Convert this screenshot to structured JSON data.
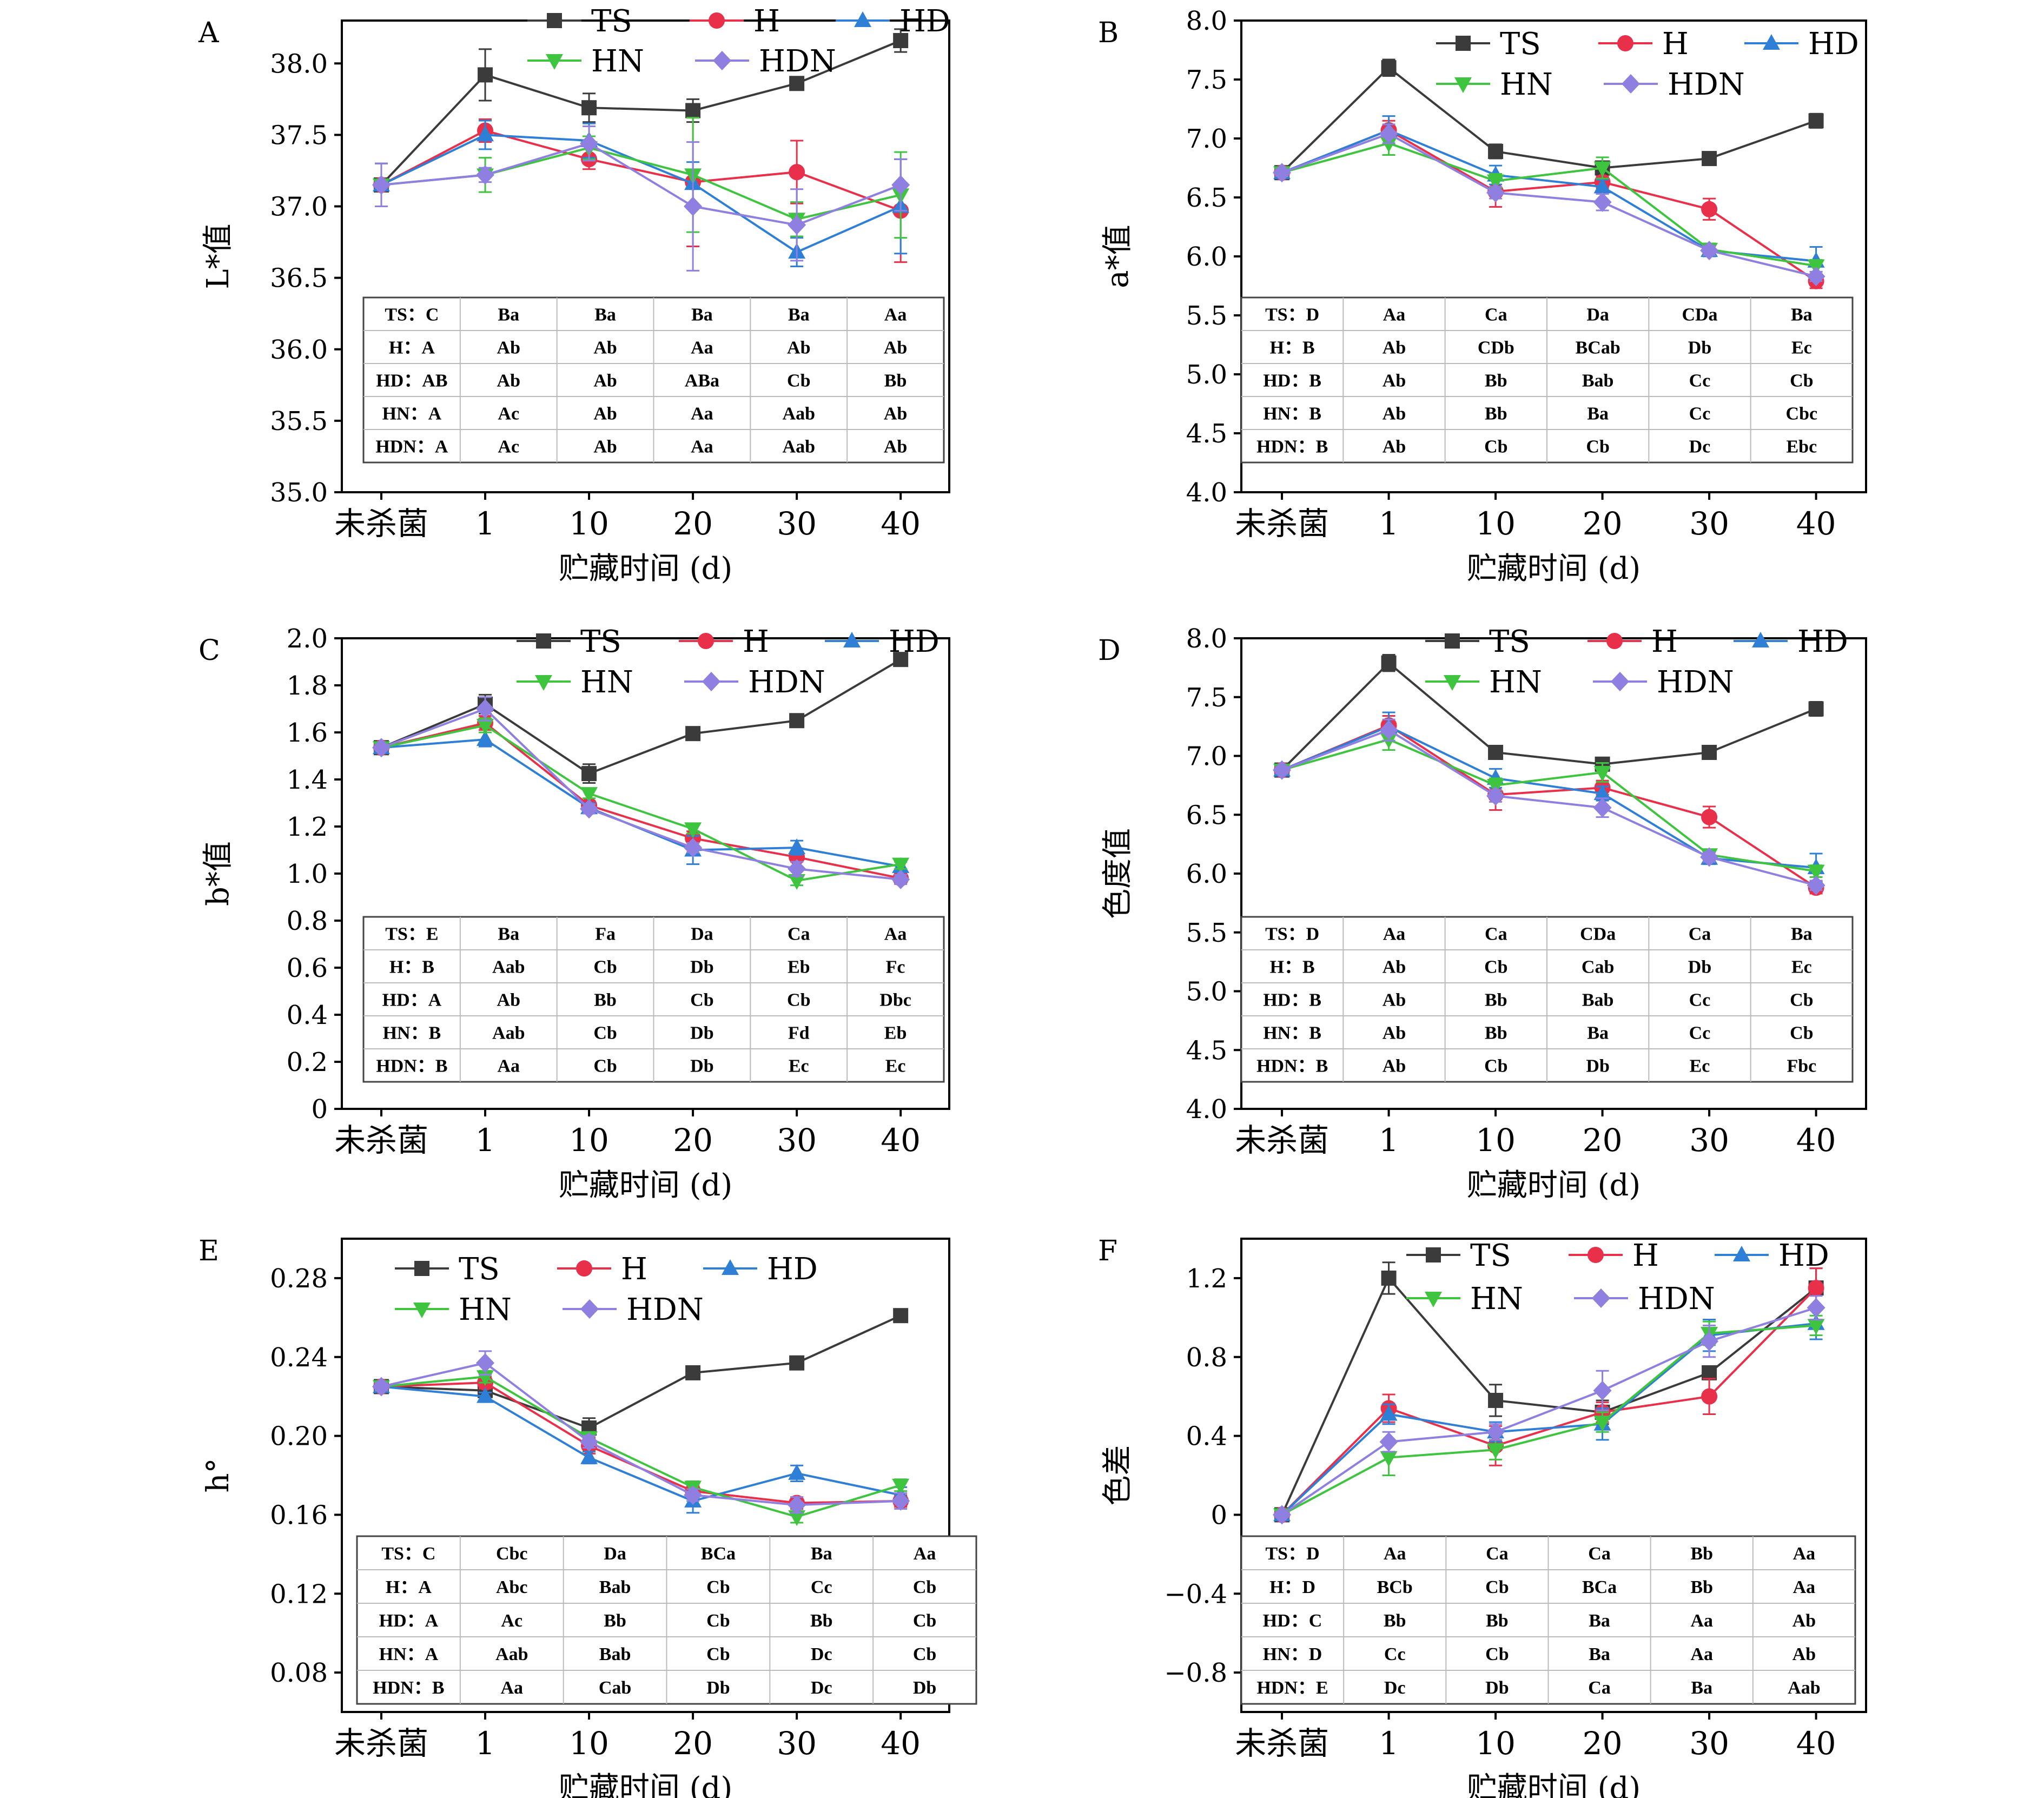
{
  "shared": {
    "categories": [
      "未杀菌",
      "1",
      "10",
      "20",
      "30",
      "40"
    ],
    "xlabel": "贮藏时间 (d)",
    "series_names": [
      "TS",
      "H",
      "HD",
      "HN",
      "HDN"
    ],
    "series_colors": [
      "#3b3b3b",
      "#e8304a",
      "#2f7fd6",
      "#3ec43e",
      "#8f7fe0"
    ],
    "series_markers": [
      "square",
      "circle",
      "triangle-up",
      "triangle-down",
      "diamond"
    ]
  },
  "chart_data": [
    {
      "type": "line",
      "panel": "A",
      "ylabel": "L*值",
      "ylim": [
        35.0,
        38.3
      ],
      "yticks": [
        "35.0",
        "35.5",
        "36.0",
        "36.5",
        "37.0",
        "37.5",
        "38.0"
      ],
      "categories": [
        "未杀菌",
        "1",
        "10",
        "20",
        "30",
        "40"
      ],
      "series": [
        {
          "name": "TS",
          "values": [
            37.15,
            37.92,
            37.69,
            37.67,
            37.86,
            38.16
          ],
          "errors": [
            0.15,
            0.18,
            0.1,
            0.08,
            0.02,
            0.08
          ]
        },
        {
          "name": "H",
          "values": [
            37.15,
            37.53,
            37.33,
            37.17,
            37.24,
            36.97
          ],
          "errors": [
            0.15,
            0.08,
            0.07,
            0.45,
            0.22,
            0.36
          ]
        },
        {
          "name": "HD",
          "values": [
            37.15,
            37.5,
            37.46,
            37.16,
            36.68,
            37.0
          ],
          "errors": [
            0.15,
            0.1,
            0.12,
            0.15,
            0.1,
            0.33
          ]
        },
        {
          "name": "HN",
          "values": [
            37.15,
            37.22,
            37.41,
            37.22,
            36.91,
            37.08
          ],
          "errors": [
            0.15,
            0.12,
            0.08,
            0.4,
            0.12,
            0.3
          ]
        },
        {
          "name": "HDN",
          "values": [
            37.15,
            37.22,
            37.44,
            37.0,
            36.87,
            37.15
          ],
          "errors": [
            0.15,
            0.05,
            0.12,
            0.45,
            0.25,
            0.18
          ]
        }
      ],
      "table": [
        [
          "TS：C",
          "Ba",
          "Ba",
          "Ba",
          "Ba",
          "Aa"
        ],
        [
          "H：A",
          "Ab",
          "Ab",
          "Aa",
          "Ab",
          "Ab"
        ],
        [
          "HD：AB",
          "Ab",
          "Ab",
          "ABa",
          "Cb",
          "Bb"
        ],
        [
          "HN：A",
          "Ac",
          "Ab",
          "Aa",
          "Aab",
          "Ab"
        ],
        [
          "HDN：A",
          "Ac",
          "Ab",
          "Aa",
          "Aab",
          "Ab"
        ]
      ]
    },
    {
      "type": "line",
      "panel": "B",
      "ylabel": "a*值",
      "ylim": [
        4.0,
        8.0
      ],
      "yticks": [
        "4.0",
        "4.5",
        "5.0",
        "5.5",
        "6.0",
        "6.5",
        "7.0",
        "7.5",
        "8.0"
      ],
      "categories": [
        "未杀菌",
        "1",
        "10",
        "20",
        "30",
        "40"
      ],
      "series": [
        {
          "name": "TS",
          "values": [
            6.71,
            7.6,
            6.89,
            6.75,
            6.83,
            7.15
          ],
          "errors": [
            0.03,
            0.07,
            0.06,
            0.02,
            0.02,
            0.06
          ]
        },
        {
          "name": "H",
          "values": [
            6.71,
            7.07,
            6.55,
            6.63,
            6.4,
            5.79
          ],
          "errors": [
            0.03,
            0.08,
            0.13,
            0.05,
            0.09,
            0.06
          ]
        },
        {
          "name": "HD",
          "values": [
            6.71,
            7.07,
            6.69,
            6.59,
            6.05,
            5.96
          ],
          "errors": [
            0.03,
            0.12,
            0.08,
            0.06,
            0.05,
            0.12
          ]
        },
        {
          "name": "HN",
          "values": [
            6.71,
            6.96,
            6.64,
            6.75,
            6.06,
            5.92
          ],
          "errors": [
            0.03,
            0.1,
            0.06,
            0.09,
            0.05,
            0.05
          ]
        },
        {
          "name": "HDN",
          "values": [
            6.71,
            7.04,
            6.54,
            6.46,
            6.05,
            5.83
          ],
          "errors": [
            0.03,
            0.08,
            0.05,
            0.07,
            0.04,
            0.04
          ]
        }
      ],
      "table": [
        [
          "TS：D",
          "Aa",
          "Ca",
          "Da",
          "CDa",
          "Ba"
        ],
        [
          "H：B",
          "Ab",
          "CDb",
          "BCab",
          "Db",
          "Ec"
        ],
        [
          "HD：B",
          "Ab",
          "Bb",
          "Bab",
          "Cc",
          "Cb"
        ],
        [
          "HN：B",
          "Ab",
          "Bb",
          "Ba",
          "Cc",
          "Cbc"
        ],
        [
          "HDN：B",
          "Ab",
          "Cb",
          "Cb",
          "Dc",
          "Ebc"
        ]
      ]
    },
    {
      "type": "line",
      "panel": "C",
      "ylabel": "b*值",
      "ylim": [
        0,
        2.0
      ],
      "yticks": [
        "0",
        "0.2",
        "0.4",
        "0.6",
        "0.8",
        "1.0",
        "1.2",
        "1.4",
        "1.6",
        "1.8",
        "2.0"
      ],
      "categories": [
        "未杀菌",
        "1",
        "10",
        "20",
        "30",
        "40"
      ],
      "series": [
        {
          "name": "TS",
          "values": [
            1.535,
            1.72,
            1.425,
            1.595,
            1.65,
            1.91
          ],
          "errors": [
            0.01,
            0.04,
            0.04,
            0.01,
            0.01,
            0.01
          ]
        },
        {
          "name": "H",
          "values": [
            1.535,
            1.64,
            1.29,
            1.15,
            1.07,
            0.98
          ],
          "errors": [
            0.01,
            0.03,
            0.02,
            0.03,
            0.02,
            0.02
          ]
        },
        {
          "name": "HD",
          "values": [
            1.535,
            1.57,
            1.28,
            1.1,
            1.11,
            1.03
          ],
          "errors": [
            0.01,
            0.03,
            0.02,
            0.06,
            0.03,
            0.02
          ]
        },
        {
          "name": "HN",
          "values": [
            1.535,
            1.63,
            1.34,
            1.19,
            0.97,
            1.04
          ],
          "errors": [
            0.01,
            0.03,
            0.02,
            0.02,
            0.02,
            0.02
          ]
        },
        {
          "name": "HDN",
          "values": [
            1.535,
            1.7,
            1.275,
            1.11,
            1.02,
            0.975
          ],
          "errors": [
            0.01,
            0.05,
            0.02,
            0.02,
            0.03,
            0.02
          ]
        }
      ],
      "table": [
        [
          "TS：E",
          "Ba",
          "Fa",
          "Da",
          "Ca",
          "Aa"
        ],
        [
          "H：B",
          "Aab",
          "Cb",
          "Db",
          "Eb",
          "Fc"
        ],
        [
          "HD：A",
          "Ab",
          "Bb",
          "Cb",
          "Cb",
          "Dbc"
        ],
        [
          "HN：B",
          "Aab",
          "Cb",
          "Db",
          "Fd",
          "Eb"
        ],
        [
          "HDN：B",
          "Aa",
          "Cb",
          "Db",
          "Ec",
          "Ec"
        ]
      ]
    },
    {
      "type": "line",
      "panel": "D",
      "ylabel": "色度值",
      "ylim": [
        4.0,
        8.0
      ],
      "yticks": [
        "4.0",
        "4.5",
        "5.0",
        "5.5",
        "6.0",
        "6.5",
        "7.0",
        "7.5",
        "8.0"
      ],
      "categories": [
        "未杀菌",
        "1",
        "10",
        "20",
        "30",
        "40"
      ],
      "series": [
        {
          "name": "TS",
          "values": [
            6.88,
            7.79,
            7.03,
            6.93,
            7.03,
            7.4
          ],
          "errors": [
            0.03,
            0.07,
            0.05,
            0.03,
            0.02,
            0.06
          ]
        },
        {
          "name": "H",
          "values": [
            6.88,
            7.26,
            6.67,
            6.73,
            6.48,
            5.88
          ],
          "errors": [
            0.03,
            0.08,
            0.13,
            0.06,
            0.09,
            0.05
          ]
        },
        {
          "name": "HD",
          "values": [
            6.88,
            7.25,
            6.81,
            6.68,
            6.13,
            6.05
          ],
          "errors": [
            0.03,
            0.12,
            0.08,
            0.06,
            0.05,
            0.12
          ]
        },
        {
          "name": "HN",
          "values": [
            6.88,
            7.14,
            6.75,
            6.86,
            6.16,
            6.02
          ],
          "errors": [
            0.03,
            0.09,
            0.06,
            0.08,
            0.04,
            0.05
          ]
        },
        {
          "name": "HDN",
          "values": [
            6.88,
            7.22,
            6.66,
            6.56,
            6.14,
            5.9
          ],
          "errors": [
            0.03,
            0.09,
            0.05,
            0.08,
            0.04,
            0.04
          ]
        }
      ],
      "table": [
        [
          "TS：D",
          "Aa",
          "Ca",
          "CDa",
          "Ca",
          "Ba"
        ],
        [
          "H：B",
          "Ab",
          "Cb",
          "Cab",
          "Db",
          "Ec"
        ],
        [
          "HD：B",
          "Ab",
          "Bb",
          "Bab",
          "Cc",
          "Cb"
        ],
        [
          "HN：B",
          "Ab",
          "Bb",
          "Ba",
          "Cc",
          "Cb"
        ],
        [
          "HDN：B",
          "Ab",
          "Cb",
          "Db",
          "Ec",
          "Fbc"
        ]
      ]
    },
    {
      "type": "line",
      "panel": "E",
      "ylabel": "h°",
      "ylim": [
        0.06,
        0.3
      ],
      "yticks": [
        "0.08",
        "0.12",
        "0.16",
        "0.20",
        "0.24",
        "0.28"
      ],
      "categories": [
        "未杀菌",
        "1",
        "10",
        "20",
        "30",
        "40"
      ],
      "series": [
        {
          "name": "TS",
          "values": [
            0.225,
            0.223,
            0.204,
            0.232,
            0.237,
            0.261
          ],
          "errors": [
            0.002,
            0.003,
            0.005,
            0.001,
            0.001,
            0.001
          ]
        },
        {
          "name": "H",
          "values": [
            0.225,
            0.227,
            0.195,
            0.172,
            0.166,
            0.167
          ],
          "errors": [
            0.002,
            0.003,
            0.004,
            0.003,
            0.003,
            0.003
          ]
        },
        {
          "name": "HD",
          "values": [
            0.225,
            0.22,
            0.189,
            0.167,
            0.181,
            0.17
          ],
          "errors": [
            0.002,
            0.002,
            0.003,
            0.006,
            0.004,
            0.004
          ]
        },
        {
          "name": "HN",
          "values": [
            0.225,
            0.23,
            0.199,
            0.174,
            0.159,
            0.175
          ],
          "errors": [
            0.002,
            0.003,
            0.003,
            0.003,
            0.003,
            0.003
          ]
        },
        {
          "name": "HDN",
          "values": [
            0.225,
            0.237,
            0.197,
            0.17,
            0.165,
            0.167
          ],
          "errors": [
            0.002,
            0.006,
            0.003,
            0.003,
            0.004,
            0.004
          ]
        }
      ],
      "table": [
        [
          "TS：C",
          "Cbc",
          "Da",
          "BCa",
          "Ba",
          "Aa"
        ],
        [
          "H：A",
          "Abc",
          "Bab",
          "Cb",
          "Cc",
          "Cb"
        ],
        [
          "HD：A",
          "Ac",
          "Bb",
          "Cb",
          "Bb",
          "Cb"
        ],
        [
          "HN：A",
          "Aab",
          "Bab",
          "Cb",
          "Dc",
          "Cb"
        ],
        [
          "HDN：B",
          "Aa",
          "Cab",
          "Db",
          "Dc",
          "Db"
        ]
      ]
    },
    {
      "type": "line",
      "panel": "F",
      "ylabel": "色差",
      "ylim": [
        -1.0,
        1.4
      ],
      "yticks": [
        "−0.8",
        "−0.4",
        "0",
        "0.4",
        "0.8",
        "1.2"
      ],
      "categories": [
        "未杀菌",
        "1",
        "10",
        "20",
        "30",
        "40"
      ],
      "series": [
        {
          "name": "TS",
          "values": [
            0,
            1.2,
            0.58,
            0.52,
            0.72,
            1.15
          ],
          "errors": [
            0.01,
            0.08,
            0.08,
            0.06,
            0.02,
            0.1
          ]
        },
        {
          "name": "H",
          "values": [
            0,
            0.54,
            0.35,
            0.52,
            0.6,
            1.15
          ],
          "errors": [
            0.01,
            0.07,
            0.1,
            0.05,
            0.09,
            0.1
          ]
        },
        {
          "name": "HD",
          "values": [
            0,
            0.51,
            0.42,
            0.46,
            0.91,
            0.97
          ],
          "errors": [
            0.01,
            0.05,
            0.05,
            0.08,
            0.08,
            0.08
          ]
        },
        {
          "name": "HN",
          "values": [
            0,
            0.29,
            0.33,
            0.47,
            0.92,
            0.96
          ],
          "errors": [
            0.01,
            0.09,
            0.05,
            0.05,
            0.06,
            0.05
          ]
        },
        {
          "name": "HDN",
          "values": [
            0,
            0.37,
            0.42,
            0.63,
            0.88,
            1.05
          ],
          "errors": [
            0.01,
            0.05,
            0.04,
            0.1,
            0.08,
            0.06
          ]
        }
      ],
      "table": [
        [
          "TS：D",
          "Aa",
          "Ca",
          "Ca",
          "Bb",
          "Aa"
        ],
        [
          "H：D",
          "BCb",
          "Cb",
          "BCa",
          "Bb",
          "Aa"
        ],
        [
          "HD：C",
          "Bb",
          "Bb",
          "Ba",
          "Aa",
          "Ab"
        ],
        [
          "HN：D",
          "Cc",
          "Cb",
          "Ba",
          "Aa",
          "Ab"
        ],
        [
          "HDN：E",
          "Dc",
          "Db",
          "Ca",
          "Ba",
          "Aab"
        ]
      ]
    }
  ]
}
